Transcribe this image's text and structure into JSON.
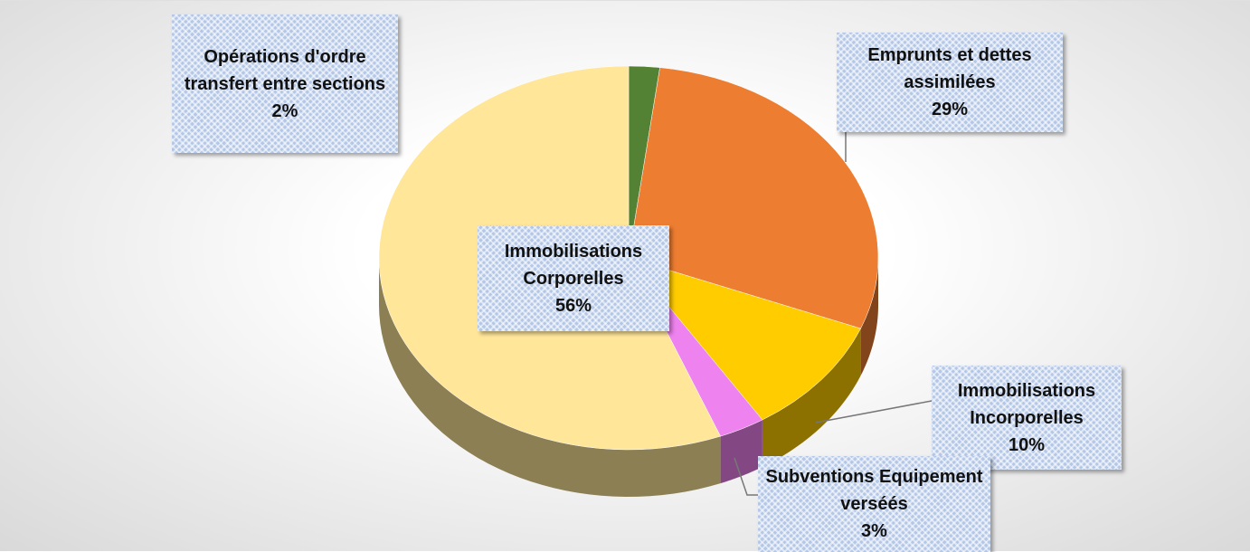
{
  "chart_data": {
    "type": "pie",
    "categories": [
      "Opérations d'ordre transfert entre sections",
      "Emprunts et dettes assimilées",
      "Immobilisations Incorporelles",
      "Subventions Equipement verséés",
      "Immobilisations Corporelles"
    ],
    "values": [
      2,
      29,
      10,
      3,
      56
    ],
    "value_labels": [
      "2%",
      "29%",
      "10%",
      "3%",
      "56%"
    ],
    "colors": [
      "#548235",
      "#ed7d31",
      "#ffcc00",
      "#ee82ee",
      "#ffe699"
    ]
  }
}
